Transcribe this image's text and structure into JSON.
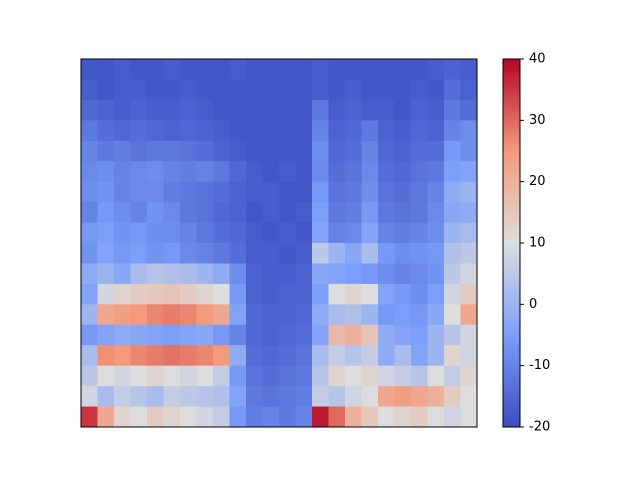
{
  "chart_data": {
    "type": "heatmap",
    "colormap": "coolwarm",
    "zlim": [
      -20,
      40
    ],
    "zticks": [
      -20,
      -10,
      0,
      10,
      20,
      30,
      40
    ],
    "z": [
      [
        -18,
        -18,
        -17,
        -18,
        -18,
        -17,
        -18,
        -18,
        -18,
        -17,
        -18,
        -18,
        -18,
        -18,
        -17,
        -18,
        -18,
        -18,
        -18,
        -18,
        -18,
        -17,
        -16,
        -17
      ],
      [
        -17,
        -18,
        -17,
        -17,
        -18,
        -18,
        -17,
        -18,
        -18,
        -18,
        -18,
        -18,
        -18,
        -18,
        -17,
        -18,
        -17,
        -18,
        -18,
        -18,
        -17,
        -18,
        -14,
        -16
      ],
      [
        -15,
        -16,
        -17,
        -16,
        -17,
        -17,
        -16,
        -17,
        -18,
        -18,
        -18,
        -18,
        -18,
        -18,
        -12,
        -17,
        -16,
        -17,
        -17,
        -18,
        -16,
        -17,
        -12,
        -14
      ],
      [
        -12,
        -14,
        -15,
        -14,
        -15,
        -16,
        -15,
        -16,
        -17,
        -18,
        -18,
        -18,
        -18,
        -18,
        -10,
        -16,
        -15,
        -12,
        -16,
        -17,
        -15,
        -16,
        -10,
        -8
      ],
      [
        -10,
        -12,
        -11,
        -13,
        -12,
        -12,
        -13,
        -14,
        -16,
        -17,
        -18,
        -18,
        -18,
        -18,
        -8,
        -15,
        -14,
        -10,
        -15,
        -16,
        -14,
        -14,
        -6,
        -8
      ],
      [
        -9,
        -8,
        -10,
        -9,
        -8,
        -10,
        -11,
        -10,
        -12,
        -15,
        -17,
        -18,
        -17,
        -18,
        -9,
        -14,
        -13,
        -9,
        -14,
        -15,
        -13,
        -12,
        -5,
        -4
      ],
      [
        -8,
        -7,
        -10,
        -9,
        -9,
        -11,
        -12,
        -13,
        -14,
        -16,
        -17,
        -17,
        -18,
        -18,
        -6,
        -13,
        -12,
        -8,
        -13,
        -14,
        -12,
        -10,
        -2,
        0
      ],
      [
        -10,
        -6,
        -8,
        -10,
        -7,
        -9,
        -12,
        -13,
        -15,
        -16,
        -18,
        -17,
        -18,
        -17,
        -5,
        -12,
        -11,
        -6,
        -12,
        -13,
        -12,
        -9,
        -3,
        -2
      ],
      [
        -6,
        -5,
        -7,
        -6,
        -8,
        -8,
        -10,
        -12,
        -14,
        -15,
        -17,
        -18,
        -17,
        -18,
        -4,
        -10,
        -9,
        -4,
        -10,
        -11,
        -10,
        -8,
        0,
        2
      ],
      [
        -7,
        -4,
        -6,
        -5,
        -7,
        -6,
        -9,
        -10,
        -12,
        -14,
        -17,
        -17,
        -18,
        -17,
        5,
        0,
        -3,
        2,
        -6,
        -8,
        -7,
        -6,
        3,
        5
      ],
      [
        -2,
        0,
        -3,
        2,
        4,
        3,
        2,
        0,
        -2,
        -8,
        -16,
        -17,
        -17,
        -16,
        -3,
        -4,
        -5,
        -6,
        -8,
        -10,
        -9,
        -7,
        5,
        8
      ],
      [
        -4,
        8,
        12,
        14,
        15,
        16,
        14,
        12,
        10,
        -6,
        -16,
        -17,
        -16,
        -16,
        -5,
        10,
        12,
        10,
        -4,
        -6,
        -8,
        -5,
        8,
        14
      ],
      [
        0,
        22,
        24,
        25,
        27,
        28,
        27,
        25,
        22,
        -4,
        -15,
        -16,
        -16,
        -15,
        -2,
        2,
        3,
        0,
        -6,
        -5,
        -6,
        -3,
        10,
        22
      ],
      [
        -6,
        -4,
        -2,
        -3,
        -4,
        -5,
        -4,
        -3,
        -6,
        -10,
        -15,
        -16,
        -15,
        -14,
        -4,
        18,
        20,
        16,
        -2,
        -4,
        -5,
        0,
        4,
        8
      ],
      [
        2,
        26,
        25,
        27,
        28,
        29,
        28,
        27,
        25,
        -2,
        -14,
        -15,
        -14,
        -13,
        2,
        6,
        4,
        6,
        -2,
        2,
        -4,
        0,
        12,
        8
      ],
      [
        5,
        10,
        8,
        10,
        12,
        10,
        8,
        10,
        6,
        -6,
        -13,
        -14,
        -13,
        -12,
        4,
        12,
        10,
        12,
        8,
        6,
        4,
        10,
        6,
        12
      ],
      [
        8,
        2,
        6,
        4,
        2,
        6,
        5,
        4,
        3,
        -4,
        -12,
        -13,
        -12,
        -11,
        6,
        4,
        8,
        10,
        22,
        24,
        22,
        20,
        14,
        10
      ],
      [
        35,
        22,
        12,
        10,
        14,
        12,
        10,
        8,
        6,
        -6,
        -11,
        -10,
        -12,
        -10,
        38,
        30,
        20,
        15,
        10,
        12,
        14,
        10,
        8,
        10
      ]
    ]
  }
}
